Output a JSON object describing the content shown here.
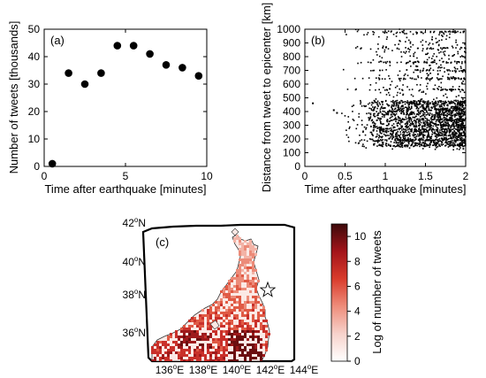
{
  "chart_data": [
    {
      "type": "scatter",
      "panel_label": "(a)",
      "xlabel": "Time after earthquake [minutes]",
      "ylabel": "Number of tweets [thousands]",
      "xlim": [
        0,
        10
      ],
      "ylim": [
        0,
        50
      ],
      "xticks": [
        "0",
        "5",
        "10"
      ],
      "yticks": [
        "0",
        "10",
        "20",
        "30",
        "40",
        "50"
      ],
      "x": [
        0.5,
        1.5,
        2.5,
        3.5,
        4.5,
        5.5,
        6.5,
        7.5,
        8.5,
        9.5
      ],
      "values": [
        1,
        34,
        30,
        34,
        44,
        44,
        41,
        37,
        36,
        33
      ]
    },
    {
      "type": "scatter",
      "panel_label": "(b)",
      "xlabel": "Time after earthquake [minutes]",
      "ylabel": "Distance from tweet to epicenter [km]",
      "xlim": [
        0,
        2
      ],
      "ylim": [
        0,
        1000
      ],
      "xticks": [
        "0",
        "0.5",
        "1",
        "1.5",
        "2"
      ],
      "yticks": [
        "0",
        "100",
        "200",
        "300",
        "400",
        "500",
        "600",
        "700",
        "800",
        "900",
        "1000"
      ],
      "x_onset_minutes": 0.45,
      "distance_range_km": [
        120,
        1000
      ],
      "dense_band_km": [
        150,
        480
      ],
      "early_points": [
        {
          "x": 0.1,
          "y": 460
        },
        {
          "x": 0.36,
          "y": 410
        },
        {
          "x": 0.4,
          "y": 390
        }
      ]
    },
    {
      "type": "heatmap",
      "panel_label": "(c)",
      "lat_ticks": [
        "42°N",
        "40°N",
        "38°N",
        "36°N"
      ],
      "lon_ticks": [
        "136°E",
        "138°E",
        "140°E",
        "142°E",
        "144°E"
      ],
      "epicenter_marker": "star",
      "colorbar": {
        "label": "Log of number of tweets",
        "ticks": [
          "0",
          "2",
          "4",
          "6",
          "8",
          "10"
        ],
        "range": [
          0,
          11
        ],
        "colors": [
          "#ffffff",
          "#f7d2cb",
          "#ee8d7b",
          "#d93c2c",
          "#a3141a",
          "#3d0a0a"
        ]
      }
    }
  ]
}
